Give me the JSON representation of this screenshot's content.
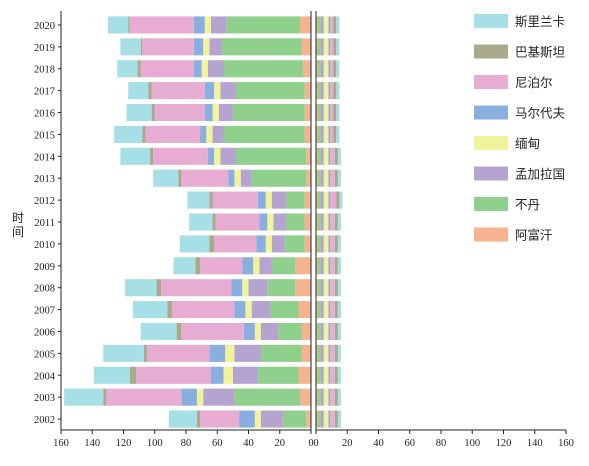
{
  "chart_data": {
    "type": "bar",
    "orientation": "horizontal",
    "stacked": true,
    "ylabel": "时间",
    "categories": [
      "2020",
      "2019",
      "2018",
      "2017",
      "2016",
      "2015",
      "2014",
      "2013",
      "2012",
      "2011",
      "2010",
      "2009",
      "2008",
      "2007",
      "2006",
      "2005",
      "2004",
      "2003",
      "2002"
    ],
    "left_panel": {
      "direction": "reversed",
      "xlim": [
        0,
        160
      ],
      "xticks": [
        "160",
        "140",
        "120",
        "100",
        "80",
        "60",
        "40",
        "20",
        "0"
      ],
      "series": [
        {
          "name": "阿富汗",
          "color": "#f6b38f",
          "values": [
            7,
            6,
            5,
            4,
            4,
            4,
            3,
            3,
            4,
            4,
            4,
            10,
            10,
            8,
            6,
            6,
            8,
            7,
            3
          ]
        },
        {
          "name": "不丹",
          "color": "#8fd08c",
          "values": [
            47,
            51,
            51,
            44,
            46,
            52,
            45,
            35,
            12,
            12,
            13,
            15,
            18,
            18,
            15,
            26,
            26,
            42,
            15
          ]
        },
        {
          "name": "孟加拉国",
          "color": "#b5a4cf",
          "values": [
            10,
            8,
            10,
            10,
            9,
            7,
            10,
            7,
            9,
            8,
            8,
            8,
            12,
            12,
            11,
            17,
            16,
            20,
            14
          ]
        },
        {
          "name": "缅甸",
          "color": "#f1f39a",
          "values": [
            4,
            4,
            4,
            4,
            4,
            4,
            4,
            4,
            4,
            4,
            4,
            4,
            4,
            4,
            4,
            6,
            6,
            4,
            4
          ]
        },
        {
          "name": "马尔代夫",
          "color": "#88afe0",
          "values": [
            7,
            6,
            5,
            6,
            5,
            4,
            4,
            4,
            5,
            5,
            6,
            7,
            7,
            7,
            7,
            10,
            8,
            10,
            10
          ]
        },
        {
          "name": "尼泊尔",
          "color": "#e6acd2",
          "values": [
            41,
            33,
            34,
            34,
            32,
            35,
            35,
            30,
            29,
            28,
            27,
            27,
            45,
            40,
            40,
            40,
            48,
            48,
            25
          ]
        },
        {
          "name": "巴基斯坦",
          "color": "#a9a98c",
          "values": [
            1,
            1,
            2,
            2,
            2,
            2,
            2,
            2,
            2,
            2,
            3,
            3,
            3,
            3,
            3,
            2,
            4,
            2,
            2
          ]
        },
        {
          "name": "斯里兰卡",
          "color": "#a6dfe5",
          "values": [
            13,
            13,
            13,
            13,
            16,
            18,
            19,
            16,
            14,
            15,
            19,
            14,
            20,
            22,
            23,
            26,
            23,
            25,
            18
          ]
        }
      ]
    },
    "right_panel": {
      "xlim": [
        0,
        160
      ],
      "xticks": [
        "0",
        "20",
        "40",
        "60",
        "80",
        "100",
        "120",
        "140",
        "160"
      ],
      "series": [
        {
          "name": "阿富汗",
          "color": "#f6b38f",
          "values": [
            1,
            1,
            1,
            1,
            1,
            1,
            1,
            1,
            1,
            1,
            1,
            1,
            1,
            1,
            1,
            1,
            1,
            1,
            1
          ]
        },
        {
          "name": "不丹",
          "color": "#8fd08c",
          "values": [
            2,
            2,
            2,
            2,
            2,
            2,
            2,
            2,
            2,
            2,
            2,
            2,
            2,
            2,
            2,
            2,
            2,
            2,
            2
          ]
        },
        {
          "name": "孟加拉国",
          "color": "#b5a4cf",
          "values": [
            2,
            2,
            2,
            2,
            2,
            2,
            2,
            2,
            2,
            2,
            2,
            2,
            2,
            2,
            2,
            2,
            2,
            2,
            2
          ]
        },
        {
          "name": "缅甸",
          "color": "#f1f39a",
          "values": [
            3,
            3,
            3,
            3,
            3,
            3,
            3,
            3,
            3,
            3,
            3,
            3,
            3,
            3,
            3,
            3,
            3,
            3,
            3
          ]
        },
        {
          "name": "马尔代夫",
          "color": "#88afe0",
          "values": [
            1,
            1,
            1,
            1,
            1,
            1,
            1,
            1,
            1,
            1,
            1,
            1,
            1,
            1,
            1,
            1,
            1,
            1,
            1
          ]
        },
        {
          "name": "尼泊尔",
          "color": "#e6acd2",
          "values": [
            2,
            2,
            2,
            2,
            2,
            2,
            3,
            3,
            4,
            3,
            3,
            3,
            3,
            3,
            3,
            3,
            3,
            3,
            3
          ]
        },
        {
          "name": "巴基斯坦",
          "color": "#a9a98c",
          "values": [
            2,
            2,
            2,
            2,
            2,
            2,
            2,
            2,
            2,
            2,
            2,
            2,
            2,
            2,
            2,
            2,
            2,
            2,
            2
          ]
        },
        {
          "name": "斯里兰卡",
          "color": "#a6dfe5",
          "values": [
            2,
            2,
            2,
            2,
            2,
            2,
            2,
            2,
            2,
            2,
            2,
            2,
            2,
            2,
            2,
            2,
            2,
            2,
            2
          ]
        }
      ]
    },
    "legend": {
      "placement": "right",
      "entries": [
        {
          "label": "斯里兰卡",
          "color": "#a6dfe5"
        },
        {
          "label": "巴基斯坦",
          "color": "#a9a98c"
        },
        {
          "label": "尼泊尔",
          "color": "#e6acd2"
        },
        {
          "label": "马尔代夫",
          "color": "#88afe0"
        },
        {
          "label": "缅甸",
          "color": "#f1f39a"
        },
        {
          "label": "孟加拉国",
          "color": "#b5a4cf"
        },
        {
          "label": "不丹",
          "color": "#8fd08c"
        },
        {
          "label": "阿富汗",
          "color": "#f6b38f"
        }
      ]
    },
    "grid": false
  }
}
